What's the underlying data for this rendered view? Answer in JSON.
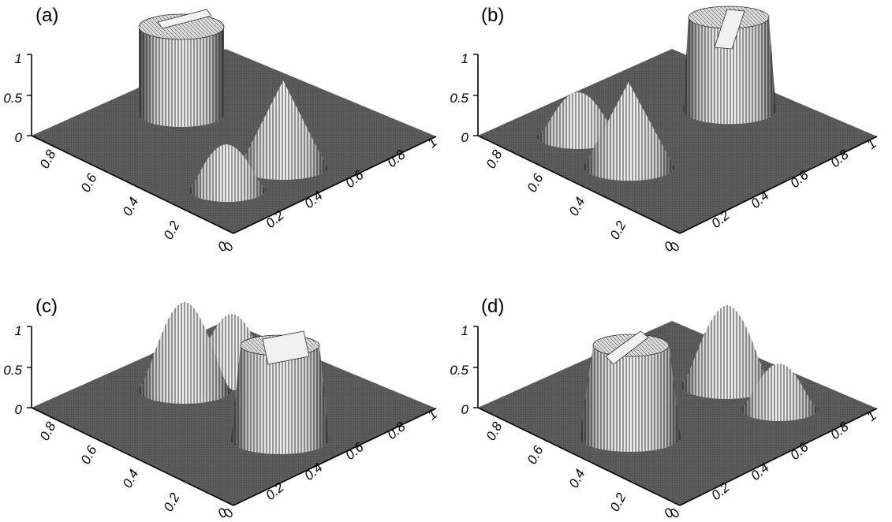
{
  "chart_data": [
    {
      "type": "surface",
      "panel_label": "(a)",
      "z_ticks": [
        "0",
        "0.5",
        "1"
      ],
      "x_ticks": [
        "0",
        "0.2",
        "0.4",
        "0.6",
        "0.8",
        "1"
      ],
      "y_ticks": [
        "0",
        "0.2",
        "0.4",
        "0.6",
        "0.8"
      ],
      "z_range": [
        0,
        1
      ],
      "x_range": [
        0,
        1
      ],
      "y_range": [
        0,
        1
      ],
      "features": [
        {
          "shape": "slotted-cylinder",
          "x": 0.5,
          "y": 0.75,
          "height": 1.0
        },
        {
          "shape": "cone",
          "x": 0.5,
          "y": 0.25,
          "height": 1.0
        },
        {
          "shape": "hump",
          "x": 0.25,
          "y": 0.5,
          "height": 0.6
        }
      ]
    },
    {
      "type": "surface",
      "panel_label": "(b)",
      "z_ticks": [
        "0",
        "0.5",
        "1"
      ],
      "x_ticks": [
        "0",
        "0.2",
        "0.4",
        "0.6",
        "0.8",
        "1"
      ],
      "y_ticks": [
        "0",
        "0.2",
        "0.4",
        "0.6",
        "0.8"
      ],
      "z_range": [
        0,
        1
      ],
      "x_range": [
        0,
        1
      ],
      "y_range": [
        0,
        1
      ],
      "features": [
        {
          "shape": "slotted-cylinder",
          "x": 0.85,
          "y": 0.45,
          "height": 1.0
        },
        {
          "shape": "cone",
          "x": 0.25,
          "y": 0.5,
          "height": 1.0
        },
        {
          "shape": "hump",
          "x": 0.5,
          "y": 0.75,
          "height": 0.6
        }
      ]
    },
    {
      "type": "surface",
      "panel_label": "(c)",
      "z_ticks": [
        "0",
        "0.5",
        "1"
      ],
      "x_ticks": [
        "0",
        "0.2",
        "0.4",
        "0.6",
        "0.8",
        "1"
      ],
      "y_ticks": [
        "0",
        "0.2",
        "0.4",
        "0.6",
        "0.8"
      ],
      "z_range": [
        0,
        1
      ],
      "x_range": [
        0,
        1
      ],
      "y_range": [
        0,
        1
      ],
      "features": [
        {
          "shape": "slotted-cylinder",
          "x": 0.5,
          "y": 0.25,
          "height": 1.0
        },
        {
          "shape": "cone",
          "x": 0.5,
          "y": 0.75,
          "height": 1.0
        },
        {
          "shape": "hump",
          "x": 0.75,
          "y": 0.5,
          "height": 0.75
        }
      ]
    },
    {
      "type": "surface",
      "panel_label": "(d)",
      "z_ticks": [
        "0",
        "0.5",
        "1"
      ],
      "x_ticks": [
        "0",
        "0.2",
        "0.4",
        "0.6",
        "0.8",
        "1"
      ],
      "y_ticks": [
        "0",
        "0.2",
        "0.4",
        "0.6",
        "0.8"
      ],
      "z_range": [
        0,
        1
      ],
      "x_range": [
        0,
        1
      ],
      "y_range": [
        0,
        1
      ],
      "features": [
        {
          "shape": "slotted-cylinder",
          "x": 0.25,
          "y": 0.5,
          "height": 1.0
        },
        {
          "shape": "cone",
          "x": 0.75,
          "y": 0.5,
          "height": 1.0
        },
        {
          "shape": "hump",
          "x": 0.85,
          "y": 0.3,
          "height": 0.6
        }
      ]
    }
  ]
}
